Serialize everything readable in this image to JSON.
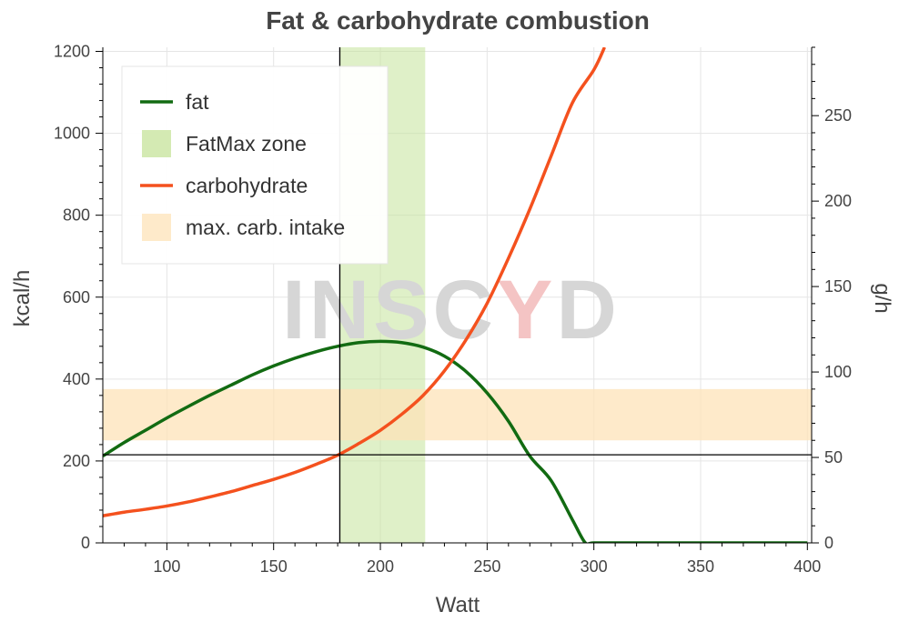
{
  "chart_data": {
    "type": "line",
    "title": "Fat & carbohydrate combustion",
    "xlabel": "Watt",
    "ylabel": "kcal/h",
    "y2label": "g/h",
    "xlim": [
      70,
      402
    ],
    "ylim": [
      0,
      1210
    ],
    "y2lim": [
      0,
      290
    ],
    "x_ticks": [
      "100",
      "150",
      "200",
      "250",
      "300",
      "350",
      "400"
    ],
    "y_ticks": [
      "0",
      "200",
      "400",
      "600",
      "800",
      "1000",
      "1200"
    ],
    "y2_ticks": [
      "0",
      "50",
      "100",
      "150",
      "200",
      "250"
    ],
    "series": [
      {
        "name": "fat",
        "color": "#126b12",
        "x": [
          70,
          80,
          90,
          100,
          110,
          120,
          130,
          140,
          150,
          160,
          170,
          180,
          190,
          200,
          210,
          220,
          230,
          240,
          250,
          260,
          270,
          280,
          290,
          296,
          300,
          320,
          340,
          360,
          380,
          400
        ],
        "y": [
          212,
          245,
          275,
          305,
          333,
          360,
          385,
          410,
          432,
          451,
          467,
          480,
          489,
          492,
          489,
          478,
          456,
          419,
          366,
          297,
          212,
          152,
          56,
          0,
          0,
          0,
          0,
          0,
          0,
          0
        ]
      },
      {
        "name": "carbohydrate",
        "color": "#f4511e",
        "x": [
          70,
          80,
          90,
          100,
          110,
          120,
          130,
          140,
          150,
          160,
          170,
          180,
          190,
          200,
          210,
          220,
          230,
          240,
          250,
          260,
          270,
          280,
          290,
          300,
          305
        ],
        "y": [
          66,
          75,
          82,
          90,
          100,
          112,
          125,
          140,
          155,
          172,
          192,
          214,
          243,
          275,
          314,
          360,
          420,
          495,
          585,
          695,
          815,
          945,
          1075,
          1155,
          1210
        ]
      }
    ],
    "bands": [
      {
        "name": "FatMax zone",
        "orientation": "vertical",
        "x_range": [
          181,
          221
        ],
        "color": "#c5e39a"
      },
      {
        "name": "max. carb. intake",
        "orientation": "horizontal",
        "y2_range": [
          60,
          90
        ],
        "color": "#fde3b8"
      }
    ],
    "reference_lines": [
      {
        "orientation": "vertical",
        "x": 181
      },
      {
        "orientation": "horizontal",
        "y": 215
      }
    ],
    "legend": {
      "placement": "top-left",
      "entries": [
        {
          "label": "fat",
          "kind": "line",
          "color": "#126b12"
        },
        {
          "label": "FatMax zone",
          "kind": "patch",
          "color": "#c5e39a"
        },
        {
          "label": "carbohydrate",
          "kind": "line",
          "color": "#f4511e"
        },
        {
          "label": "max. carb. intake",
          "kind": "patch",
          "color": "#fde3b8"
        }
      ]
    },
    "grid": true
  },
  "watermark": {
    "text_main": "INSC",
    "text_accent": "Y",
    "text_end": "D"
  }
}
